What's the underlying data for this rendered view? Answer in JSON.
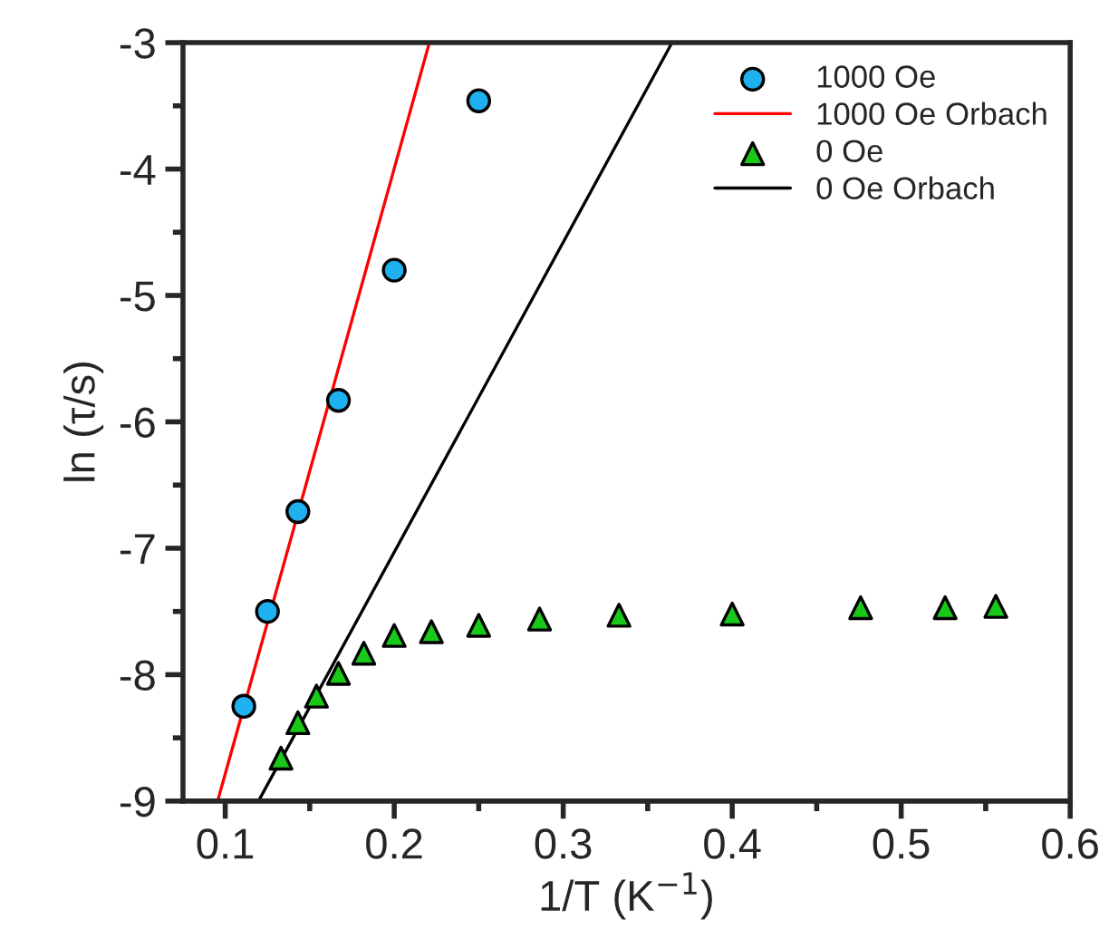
{
  "chart_data": {
    "type": "scatter",
    "xlabel": "1/T (K$^{−1}$)",
    "ylabel": "ln (τ/s)",
    "xlim": [
      0.075,
      0.6
    ],
    "xticks": [
      0.1,
      0.2,
      0.3,
      0.4,
      0.5,
      0.6
    ],
    "ylim": [
      -9,
      -3
    ],
    "yticks": [
      -9,
      -8,
      -7,
      -6,
      -5,
      -4,
      -3
    ],
    "grid": false,
    "legend": "top right",
    "series": [
      {
        "name": "1000 Oe",
        "marker": "circle",
        "color": "#1eb0ef",
        "x": [
          0.111,
          0.125,
          0.143,
          0.167,
          0.2,
          0.25
        ],
        "values": [
          -8.25,
          -7.5,
          -6.71,
          -5.83,
          -4.8,
          -3.46
        ]
      },
      {
        "name": "1000 Oe Orbach",
        "type": "line",
        "marker": "none",
        "line_style": "solid",
        "color": "#ff0000",
        "x": [
          0.0955,
          0.2208
        ],
        "values": [
          -9,
          -3
        ]
      },
      {
        "name": "0 Oe",
        "marker": "triangle",
        "color": "#19c819",
        "x": [
          0.133,
          0.143,
          0.154,
          0.167,
          0.182,
          0.2,
          0.222,
          0.25,
          0.286,
          0.333,
          0.4,
          0.476,
          0.526,
          0.556
        ],
        "values": [
          -8.66,
          -8.38,
          -8.17,
          -7.99,
          -7.83,
          -7.69,
          -7.66,
          -7.61,
          -7.56,
          -7.53,
          -7.52,
          -7.47,
          -7.47,
          -7.46
        ]
      },
      {
        "name": "0 Oe Orbach",
        "type": "line",
        "marker": "none",
        "line_style": "solid",
        "color": "#000000",
        "x": [
          0.1197,
          0.3644
        ],
        "values": [
          -9,
          -3
        ]
      }
    ]
  }
}
